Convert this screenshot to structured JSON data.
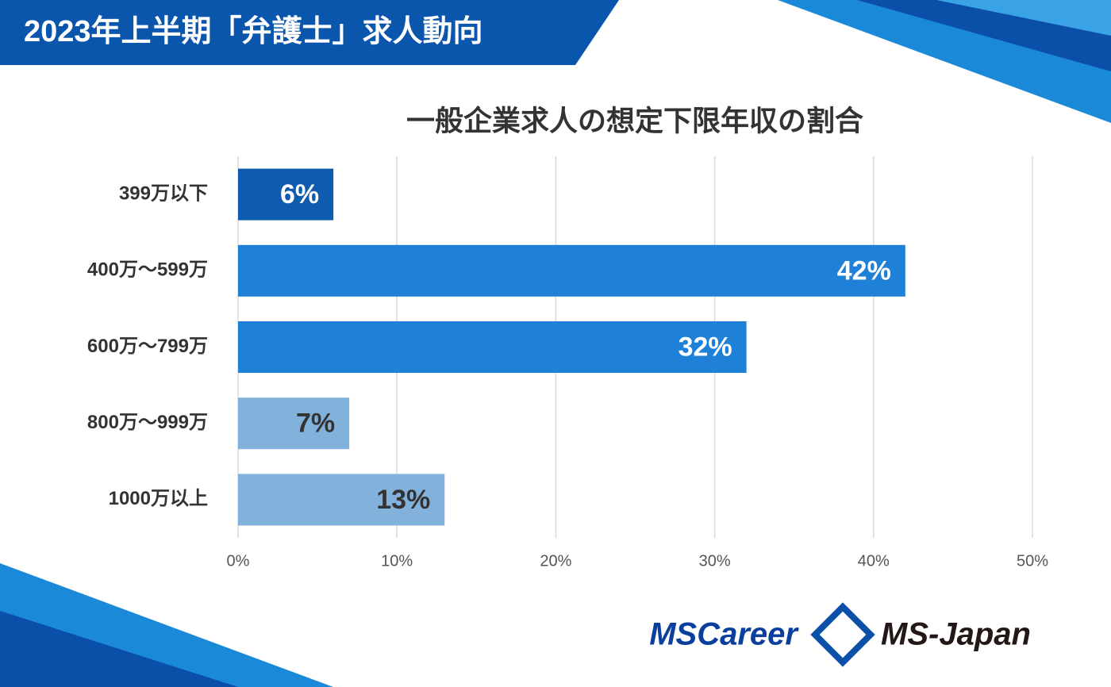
{
  "header": {
    "title": "2023年上半期「弁護士」求人動向",
    "logos": [
      "MSCareer",
      "MS-Japan"
    ]
  },
  "chart_data": {
    "type": "hbar",
    "title": "一般企業求人の想定下限年収の割合",
    "categories": [
      "399万以下",
      "400万～599万",
      "600万～799万",
      "800万～999万",
      "1000万以上"
    ],
    "values": [
      6,
      42,
      32,
      7,
      13
    ],
    "value_labels": [
      "6%",
      "42%",
      "32%",
      "7%",
      "13%"
    ],
    "colors": [
      "#0f5bb0",
      "#1e80d6",
      "#1e80d6",
      "#82b1dc",
      "#82b1dc"
    ],
    "xlim": [
      0,
      50
    ],
    "xticks": [
      {
        "value": 0,
        "label": "0%"
      },
      {
        "value": 10,
        "label": "10%"
      },
      {
        "value": 20,
        "label": "20%"
      },
      {
        "value": 30,
        "label": "30%"
      },
      {
        "value": 40,
        "label": "40%"
      },
      {
        "value": 50,
        "label": "50%"
      }
    ],
    "grid": true
  }
}
